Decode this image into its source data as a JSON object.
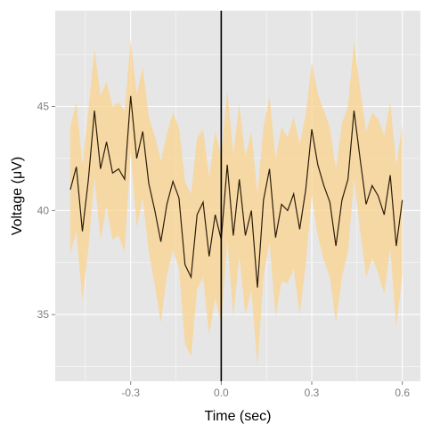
{
  "chart_data": {
    "type": "line",
    "title": "",
    "xlabel": "Time (sec)",
    "ylabel": "Voltage (μV)",
    "xlim": [
      -0.55,
      0.66
    ],
    "ylim": [
      31.8,
      49.6
    ],
    "x_ticks": [
      -0.3,
      0.0,
      0.3,
      0.6
    ],
    "x_tick_labels": [
      "-0.3",
      "0.0",
      "0.3",
      "0.6"
    ],
    "y_ticks": [
      35,
      40,
      45
    ],
    "y_tick_labels": [
      "35",
      "40",
      "45"
    ],
    "grid": true,
    "legend": "none",
    "annotations": [
      {
        "type": "vertical-line",
        "x": 0.0,
        "color": "#000000"
      }
    ],
    "series": [
      {
        "x": [
          -0.5,
          -0.48,
          -0.46,
          -0.44,
          -0.42,
          -0.4,
          -0.38,
          -0.36,
          -0.34,
          -0.32,
          -0.3,
          -0.28,
          -0.26,
          -0.24,
          -0.22,
          -0.2,
          -0.18,
          -0.16,
          -0.14,
          -0.12,
          -0.1,
          -0.08,
          -0.06,
          -0.04,
          -0.02,
          0.0,
          0.02,
          0.04,
          0.06,
          0.08,
          0.1,
          0.12,
          0.14,
          0.16,
          0.18,
          0.2,
          0.22,
          0.24,
          0.26,
          0.28,
          0.3,
          0.32,
          0.34,
          0.36,
          0.38,
          0.4,
          0.42,
          0.44,
          0.46,
          0.48,
          0.5,
          0.52,
          0.54,
          0.56,
          0.58,
          0.6
        ],
        "values": [
          41.0,
          42.1,
          39.0,
          41.5,
          44.8,
          42.0,
          43.3,
          41.8,
          42.0,
          41.5,
          45.5,
          42.5,
          43.8,
          41.3,
          40.0,
          38.5,
          40.3,
          41.4,
          40.6,
          37.4,
          36.8,
          39.8,
          40.4,
          37.8,
          39.8,
          38.6,
          42.2,
          38.8,
          41.5,
          38.8,
          40.0,
          36.3,
          40.5,
          42.0,
          38.7,
          40.3,
          40.0,
          40.8,
          39.1,
          41.0,
          43.9,
          42.2,
          41.2,
          40.4,
          38.3,
          40.5,
          41.5,
          44.8,
          42.5,
          40.3,
          41.2,
          40.7,
          39.8,
          41.7,
          38.3,
          40.5
        ],
        "upper": [
          44.0,
          45.2,
          42.2,
          44.8,
          47.8,
          45.5,
          46.2,
          45.0,
          45.2,
          44.8,
          48.2,
          45.6,
          46.9,
          44.5,
          43.6,
          42.4,
          43.7,
          44.7,
          44.0,
          41.4,
          40.8,
          43.5,
          43.9,
          41.6,
          43.8,
          42.6,
          45.8,
          42.7,
          45.1,
          42.6,
          43.8,
          40.8,
          44.0,
          45.5,
          42.5,
          44.0,
          43.5,
          44.5,
          43.2,
          44.6,
          47.1,
          45.6,
          44.8,
          44.0,
          42.0,
          44.2,
          45.0,
          48.1,
          45.9,
          43.8,
          44.7,
          44.4,
          43.6,
          45.2,
          42.2,
          44.1
        ],
        "lower": [
          37.9,
          39.0,
          35.7,
          38.2,
          41.6,
          38.6,
          40.2,
          38.6,
          38.8,
          38.0,
          42.8,
          39.2,
          40.6,
          38.0,
          36.4,
          34.6,
          36.9,
          38.1,
          37.2,
          33.6,
          33.0,
          36.2,
          36.8,
          34.0,
          35.8,
          34.6,
          38.6,
          34.9,
          37.8,
          35.0,
          36.2,
          32.5,
          36.8,
          38.5,
          34.9,
          36.6,
          36.5,
          37.2,
          35.0,
          37.4,
          40.7,
          38.8,
          37.6,
          36.8,
          34.6,
          36.8,
          38.0,
          41.5,
          39.1,
          36.8,
          37.7,
          37.0,
          36.0,
          38.2,
          34.4,
          36.9
        ],
        "line_color": "#2b1d08",
        "band_color": "#fbd38d"
      }
    ]
  }
}
